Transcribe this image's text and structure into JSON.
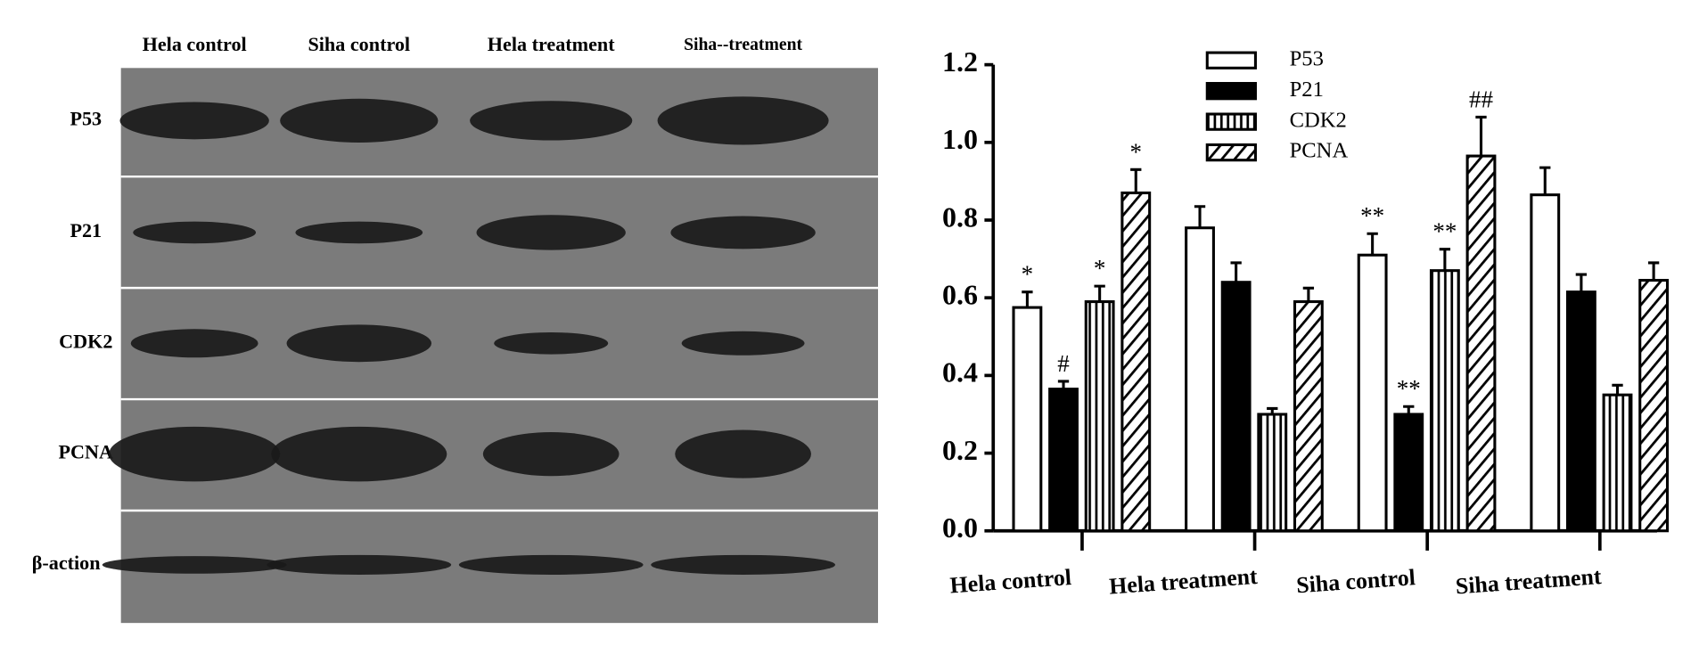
{
  "blot": {
    "columns": [
      "Hela control",
      "Siha control",
      "Hela treatment",
      "Siha--treatment"
    ],
    "rows": [
      "P53",
      "P21",
      "CDK2",
      "PCNA",
      "β-action"
    ]
  },
  "chart_data": {
    "type": "bar",
    "categories": [
      "Hela control",
      "Hela treatment",
      "Siha control",
      "Siha treatment"
    ],
    "series": [
      {
        "name": "P53",
        "color": "#000000",
        "pattern": "open",
        "values": [
          0.575,
          0.78,
          0.71,
          0.865
        ],
        "errors": [
          0.04,
          0.055,
          0.055,
          0.07
        ],
        "annotations": [
          "*",
          null,
          "**",
          null
        ]
      },
      {
        "name": "P21",
        "color": "#000000",
        "pattern": "solid",
        "values": [
          0.365,
          0.64,
          0.3,
          0.615
        ],
        "errors": [
          0.02,
          0.05,
          0.02,
          0.045
        ],
        "annotations": [
          "#",
          null,
          "**",
          null
        ]
      },
      {
        "name": "CDK2",
        "color": "#000000",
        "pattern": "vertical-lines",
        "values": [
          0.59,
          0.3,
          0.67,
          0.35
        ],
        "errors": [
          0.04,
          0.015,
          0.055,
          0.025
        ],
        "annotations": [
          "*",
          null,
          "**",
          null
        ]
      },
      {
        "name": "PCNA",
        "color": "#000000",
        "pattern": "diagonal-lines",
        "values": [
          0.87,
          0.59,
          0.965,
          0.645
        ],
        "errors": [
          0.06,
          0.035,
          0.1,
          0.045
        ],
        "annotations": [
          "*",
          null,
          "##",
          null
        ]
      }
    ],
    "ylim": [
      0,
      1.2
    ],
    "yticks": [
      {
        "value": 0,
        "label": "0.0"
      },
      {
        "value": 0.2,
        "label": "0.2"
      },
      {
        "value": 0.4,
        "label": "0.4"
      },
      {
        "value": 0.6,
        "label": "0.6"
      },
      {
        "value": 0.8,
        "label": "0.8"
      },
      {
        "value": 1,
        "label": "1.0"
      },
      {
        "value": 1.2,
        "label": "1.2"
      }
    ],
    "legend": "top-center"
  }
}
